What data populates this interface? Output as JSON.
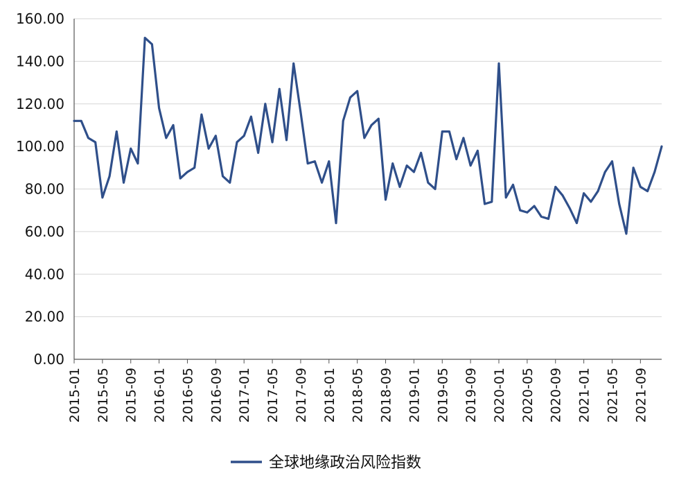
{
  "chart_data": {
    "type": "line",
    "title": "",
    "xlabel": "",
    "ylabel": "",
    "ylim": [
      0,
      160
    ],
    "y_ticks": [
      "0.00",
      "20.00",
      "40.00",
      "60.00",
      "80.00",
      "100.00",
      "120.00",
      "140.00",
      "160.00"
    ],
    "x_tick_labels": [
      "2015-01",
      "2015-05",
      "2015-09",
      "2016-01",
      "2016-05",
      "2016-09",
      "2017-01",
      "2017-05",
      "2017-09",
      "2018-01",
      "2018-05",
      "2018-09",
      "2019-01",
      "2019-05",
      "2019-09",
      "2020-01",
      "2020-05",
      "2020-09",
      "2021-01",
      "2021-05",
      "2021-09"
    ],
    "grid": true,
    "legend": "bottom",
    "x": [
      "2015-01",
      "2015-02",
      "2015-03",
      "2015-04",
      "2015-05",
      "2015-06",
      "2015-07",
      "2015-08",
      "2015-09",
      "2015-10",
      "2015-11",
      "2015-12",
      "2016-01",
      "2016-02",
      "2016-03",
      "2016-04",
      "2016-05",
      "2016-06",
      "2016-07",
      "2016-08",
      "2016-09",
      "2016-10",
      "2016-11",
      "2016-12",
      "2017-01",
      "2017-02",
      "2017-03",
      "2017-04",
      "2017-05",
      "2017-06",
      "2017-07",
      "2017-08",
      "2017-09",
      "2017-10",
      "2017-11",
      "2017-12",
      "2018-01",
      "2018-02",
      "2018-03",
      "2018-04",
      "2018-05",
      "2018-06",
      "2018-07",
      "2018-08",
      "2018-09",
      "2018-10",
      "2018-11",
      "2018-12",
      "2019-01",
      "2019-02",
      "2019-03",
      "2019-04",
      "2019-05",
      "2019-06",
      "2019-07",
      "2019-08",
      "2019-09",
      "2019-10",
      "2019-11",
      "2019-12",
      "2020-01",
      "2020-02",
      "2020-03",
      "2020-04",
      "2020-05",
      "2020-06",
      "2020-07",
      "2020-08",
      "2020-09",
      "2020-10",
      "2020-11",
      "2020-12",
      "2021-01",
      "2021-02",
      "2021-03",
      "2021-04",
      "2021-05",
      "2021-06",
      "2021-07",
      "2021-08",
      "2021-09",
      "2021-10",
      "2021-11",
      "2021-12"
    ],
    "series": [
      {
        "name": "全球地缘政治风险指数",
        "color": "#2f4f8a",
        "values": [
          112,
          112,
          104,
          102,
          76,
          86,
          107,
          83,
          99,
          92,
          151,
          148,
          118,
          104,
          110,
          85,
          88,
          90,
          115,
          99,
          105,
          86,
          83,
          102,
          105,
          114,
          97,
          120,
          102,
          127,
          103,
          139,
          116,
          92,
          93,
          83,
          93,
          64,
          112,
          123,
          126,
          104,
          110,
          113,
          75,
          92,
          81,
          91,
          88,
          97,
          83,
          80,
          107,
          107,
          94,
          104,
          91,
          98,
          73,
          74,
          139,
          76,
          82,
          70,
          69,
          72,
          67,
          66,
          81,
          77,
          71,
          64,
          78,
          74,
          79,
          88,
          93,
          73,
          59,
          90,
          81,
          79,
          88,
          100
        ]
      }
    ]
  }
}
